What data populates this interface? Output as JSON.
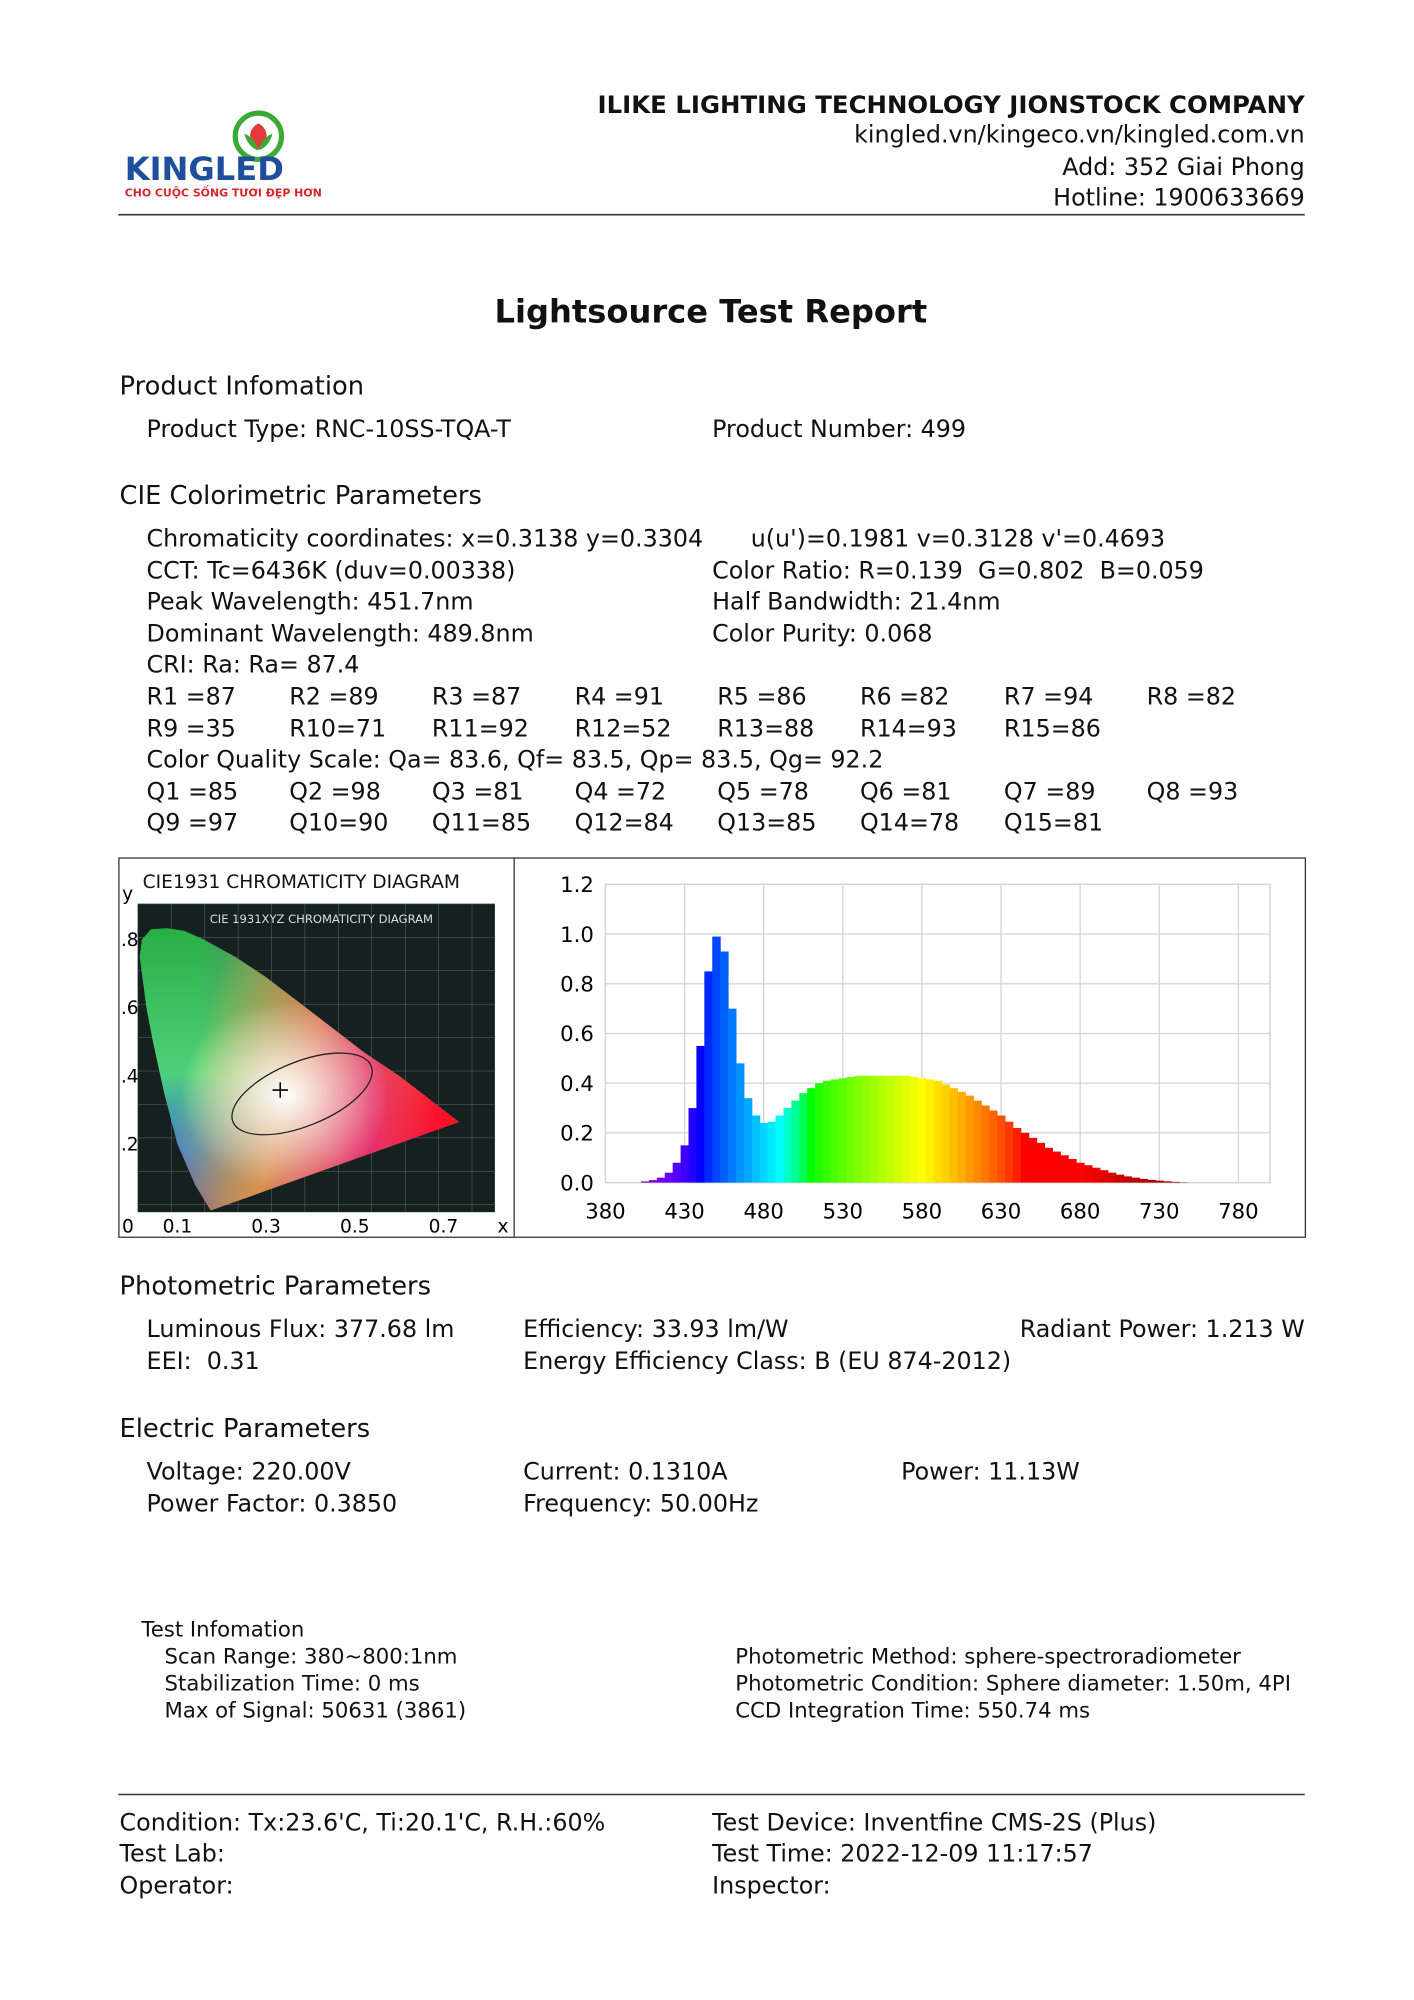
{
  "header": {
    "company": "ILIKE LIGHTING TECHNOLOGY JIONSTOCK COMPANY",
    "website": "kingled.vn/kingeco.vn/kingled.com.vn",
    "address": "Add: 352 Giai Phong",
    "hotline": "Hotline: 1900633669",
    "logo_text": "KINGLED",
    "logo_tagline": "CHO CUỘC SỐNG TƯƠI ĐẸP HƠN"
  },
  "title": "Lightsource Test Report",
  "product_info": {
    "heading": "Product Infomation",
    "rows": [
      [
        "Product Type: RNC-10SS-TQA-T",
        "Product Number: 499"
      ]
    ]
  },
  "cie_parameters": {
    "heading": "CIE Colorimetric Parameters",
    "rows": [
      [
        "Chromaticity coordinates: x=0.3138 y=0.3304",
        "u(u')=0.1981 v=0.3128 v'=0.4693"
      ],
      [
        "CCT: Tc=6436K (duv=0.00338)",
        "Color Ratio: R=0.139  G=0.802  B=0.059"
      ],
      [
        "Peak Wavelength: 451.7nm",
        "Half Bandwidth: 21.4nm"
      ],
      [
        "Dominant Wavelength: 489.8nm",
        "Color Purity: 0.068"
      ],
      [
        "CRI: Ra: Ra= 87.4"
      ],
      [
        "R1 =87",
        "R2 =89",
        "R3 =87",
        "R4 =91",
        "R5 =86",
        "R6 =82",
        "R7 =94",
        "R8 =82"
      ],
      [
        "R9 =35",
        "R10=71",
        "R11=92",
        "R12=52",
        "R13=88",
        "R14=93",
        "R15=86"
      ],
      [
        "Color Quality Scale: Qa= 83.6, Qf= 83.5, Qp= 83.5, Qg= 92.2"
      ],
      [
        "Q1 =85",
        "Q2 =98",
        "Q3 =81",
        "Q4 =72",
        "Q5 =78",
        "Q6 =81",
        "Q7 =89",
        "Q8 =93"
      ],
      [
        "Q9 =97",
        "Q10=90",
        "Q11=85",
        "Q12=84",
        "Q13=85",
        "Q14=78",
        "Q15=81"
      ]
    ]
  },
  "cie_diagram": {
    "title": "CIE1931 CHROMATICITY DIAGRAM",
    "inner_title": "CIE 1931XYZ CHROMATICITY DIAGRAM",
    "x_label": "x",
    "y_label": "y",
    "xlim": [
      0,
      0.8
    ],
    "ylim": [
      0,
      0.9
    ],
    "xticks": [
      0,
      0.1,
      0.3,
      0.5,
      0.7
    ],
    "yticks": [
      {
        "value": 0.2,
        "label": ".2"
      },
      {
        "value": 0.4,
        "label": ".4"
      },
      {
        "value": 0.6,
        "label": ".6"
      },
      {
        "value": 0.8,
        "label": ".8"
      }
    ]
  },
  "spectrum_chart": {
    "type": "bar",
    "xlim": [
      380,
      800
    ],
    "ylim": [
      0,
      1.2
    ],
    "xticks": [
      380,
      430,
      480,
      530,
      580,
      630,
      680,
      730,
      780
    ],
    "yticks": [
      {
        "value": 0,
        "label": "0.0"
      },
      {
        "value": 0.2,
        "label": "0.2"
      },
      {
        "value": 0.4,
        "label": "0.4"
      },
      {
        "value": 0.6,
        "label": "0.6"
      },
      {
        "value": 0.8,
        "label": "0.8"
      },
      {
        "value": 1,
        "label": "1.0"
      },
      {
        "value": 1.2,
        "label": "1.2"
      }
    ],
    "grid": true,
    "x": [
      400,
      405,
      410,
      415,
      420,
      425,
      430,
      435,
      440,
      445,
      450,
      455,
      460,
      465,
      470,
      475,
      480,
      485,
      490,
      495,
      500,
      505,
      510,
      515,
      520,
      525,
      530,
      535,
      540,
      545,
      550,
      555,
      560,
      565,
      570,
      575,
      580,
      585,
      590,
      595,
      600,
      605,
      610,
      615,
      620,
      625,
      630,
      635,
      640,
      645,
      650,
      655,
      660,
      665,
      670,
      675,
      680,
      685,
      690,
      695,
      700,
      705,
      710,
      715,
      720,
      725,
      730,
      735,
      740,
      745,
      750
    ],
    "values": [
      0,
      0.005,
      0.01,
      0.02,
      0.04,
      0.08,
      0.15,
      0.3,
      0.55,
      0.85,
      0.99,
      0.93,
      0.7,
      0.48,
      0.34,
      0.27,
      0.24,
      0.245,
      0.27,
      0.3,
      0.33,
      0.36,
      0.38,
      0.4,
      0.41,
      0.415,
      0.42,
      0.425,
      0.43,
      0.43,
      0.43,
      0.43,
      0.43,
      0.43,
      0.43,
      0.425,
      0.42,
      0.415,
      0.41,
      0.395,
      0.38,
      0.365,
      0.35,
      0.33,
      0.31,
      0.29,
      0.27,
      0.245,
      0.22,
      0.2,
      0.18,
      0.16,
      0.14,
      0.125,
      0.11,
      0.095,
      0.08,
      0.07,
      0.06,
      0.05,
      0.04,
      0.032,
      0.025,
      0.02,
      0.015,
      0.011,
      0.008,
      0.005,
      0.003,
      0.001,
      0
    ]
  },
  "photometric_parameters": {
    "heading": "Photometric Parameters",
    "rows": [
      [
        "Luminous Flux: 377.68 lm",
        "Efficiency: 33.93 lm/W",
        "Radiant Power: 1.213 W"
      ],
      [
        "EEI:  0.31",
        "Energy Efficiency Class: B (EU 874-2012)"
      ]
    ]
  },
  "electric_parameters": {
    "heading": "Electric Parameters",
    "rows": [
      [
        "Voltage: 220.00V",
        "Current: 0.1310A",
        "Power: 11.13W"
      ],
      [
        "Power Factor: 0.3850",
        "Frequency: 50.00Hz"
      ]
    ]
  },
  "test_information": {
    "heading": "Test Infomation",
    "rows": [
      [
        "Scan Range: 380~800:1nm",
        "Photometric Method: sphere-spectroradiometer"
      ],
      [
        "Stabilization Time: 0 ms",
        "Photometric Condition: Sphere diameter: 1.50m, 4PI"
      ],
      [
        "Max of Signal: 50631 (3861)",
        "CCD Integration Time: 550.74 ms"
      ]
    ]
  },
  "footer": {
    "rows": [
      [
        "Condition: Tx:23.6'C, Ti:20.1'C, R.H.:60%",
        "Test Device: Inventfine CMS-2S (Plus)"
      ],
      [
        "Test Lab:",
        "Test Time: 2022-12-09 11:17:57"
      ],
      [
        "Operator:",
        "Inspector:"
      ]
    ]
  }
}
